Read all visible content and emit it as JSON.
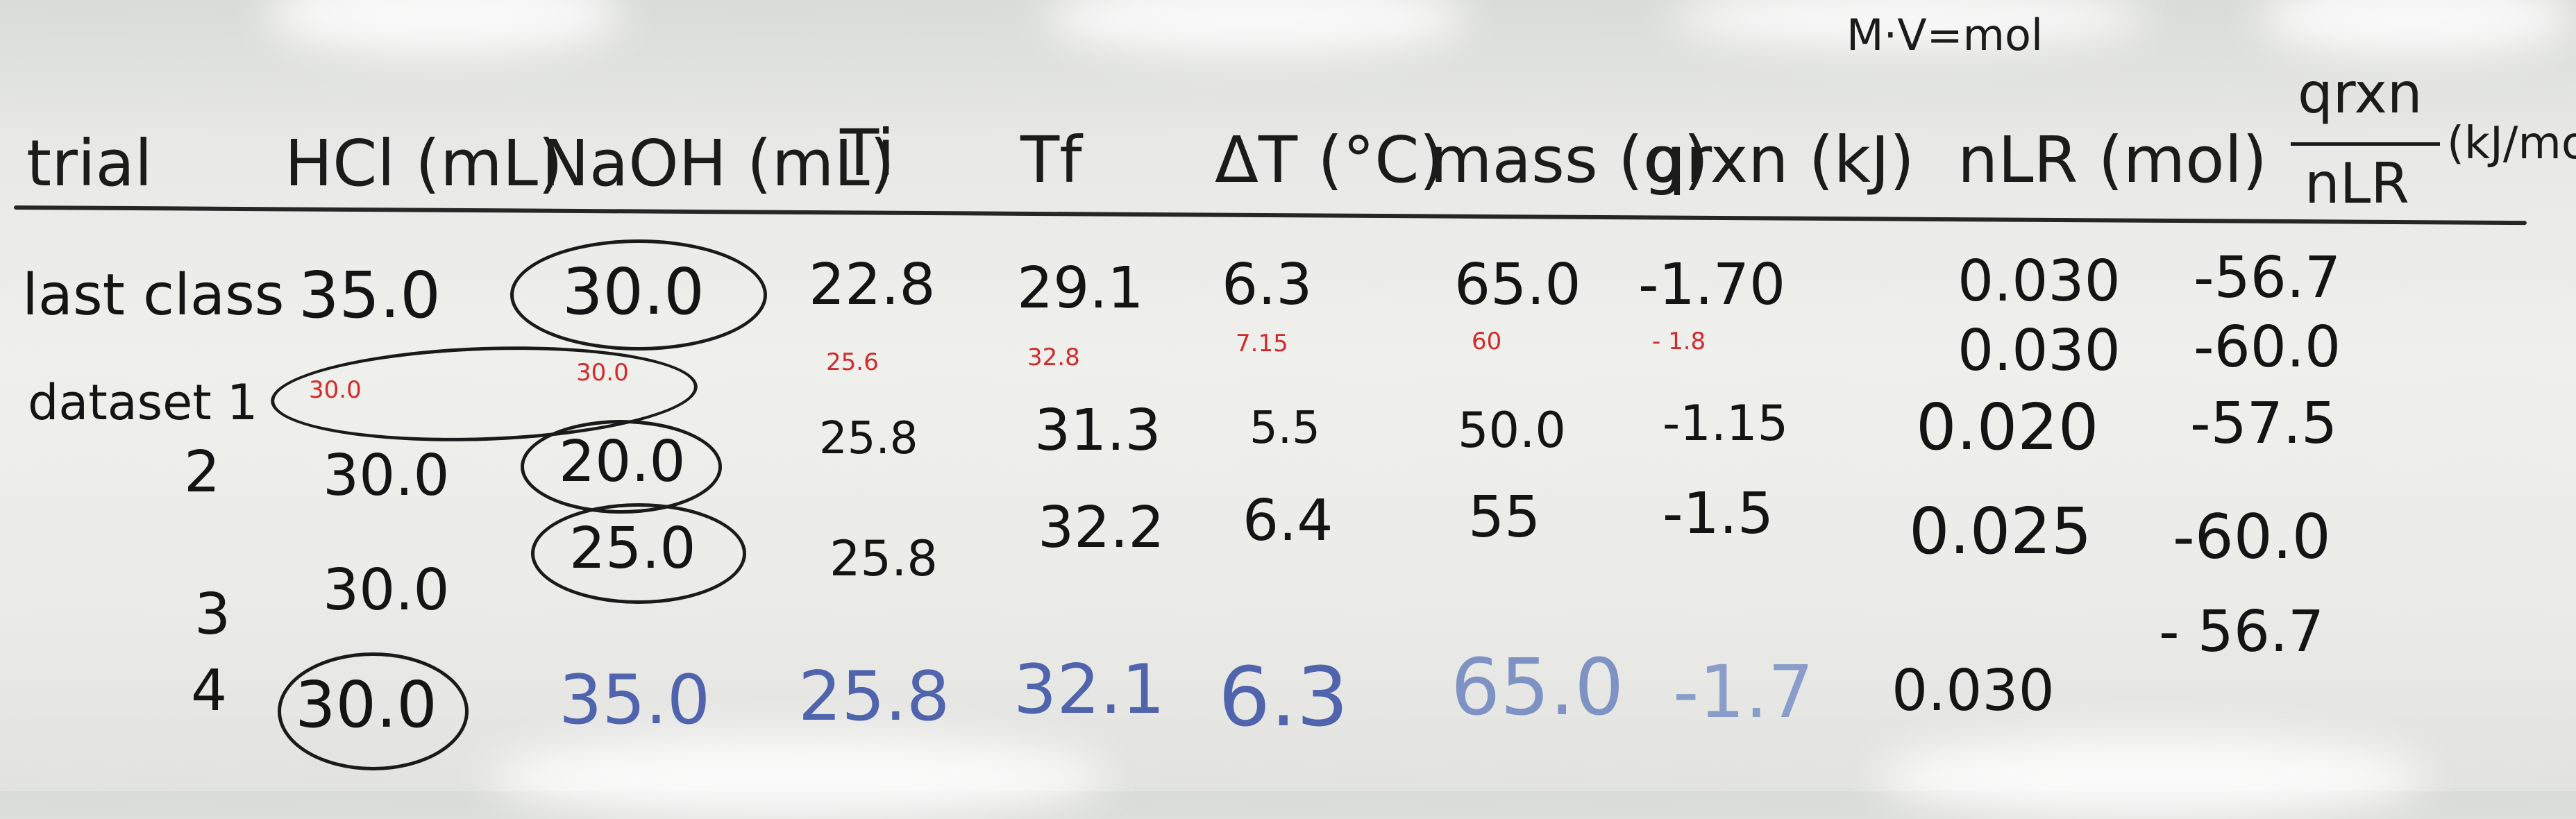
{
  "formula": "M·V=mol",
  "headers": {
    "trial": "trial",
    "hcl": "HCl (mL)",
    "naoh": "NaOH (mL)",
    "ti": "Ti",
    "tf": "Tf",
    "dt": "ΔT (°C)",
    "mass": "mass (g)",
    "qrxn": "qrxn (kJ)",
    "nlr": "nLR (mol)",
    "ratio_num": "qrxn",
    "ratio_den": "nLR",
    "ratio_unit": "(kJ/mol)"
  },
  "rows": [
    {
      "trial": "last class",
      "hcl": "35.0",
      "naoh": "30.0",
      "ti": "22.8",
      "tf": "29.1",
      "dt": "6.3",
      "mass": "65.0",
      "qrxn": "-1.70",
      "nlr": "0.030",
      "ratio": "-56.7"
    },
    {
      "trial": "dataset 1",
      "hcl": "30.0",
      "naoh": "30.0",
      "ti": "25.6",
      "tf": "32.8",
      "dt": "7.15",
      "mass": "60",
      "qrxn": "- 1.8",
      "nlr": "0.030",
      "ratio": "-60.0"
    },
    {
      "trial": "2",
      "hcl": "30.0",
      "naoh": "20.0",
      "ti": "25.8",
      "tf": "31.3",
      "dt": "5.5",
      "mass": "50.0",
      "qrxn": "-1.15",
      "nlr": "0.020",
      "ratio": "-57.5"
    },
    {
      "trial": "3",
      "hcl": "30.0",
      "naoh": "25.0",
      "ti": "25.8",
      "tf": "32.2",
      "dt": "6.4",
      "mass": "55",
      "qrxn": "-1.5",
      "nlr": "0.025",
      "ratio": "-60.0"
    },
    {
      "trial": "4",
      "hcl": "30.0",
      "naoh": "35.0",
      "ti": "25.8",
      "tf": "32.1",
      "dt": "6.3",
      "mass": "65.0",
      "qrxn": "-1.7",
      "nlr": "0.030",
      "ratio": "- 56.7"
    }
  ],
  "ink_colors": {
    "black": "#141414",
    "red": "#d22a2a",
    "blue": "#4f64ad"
  }
}
